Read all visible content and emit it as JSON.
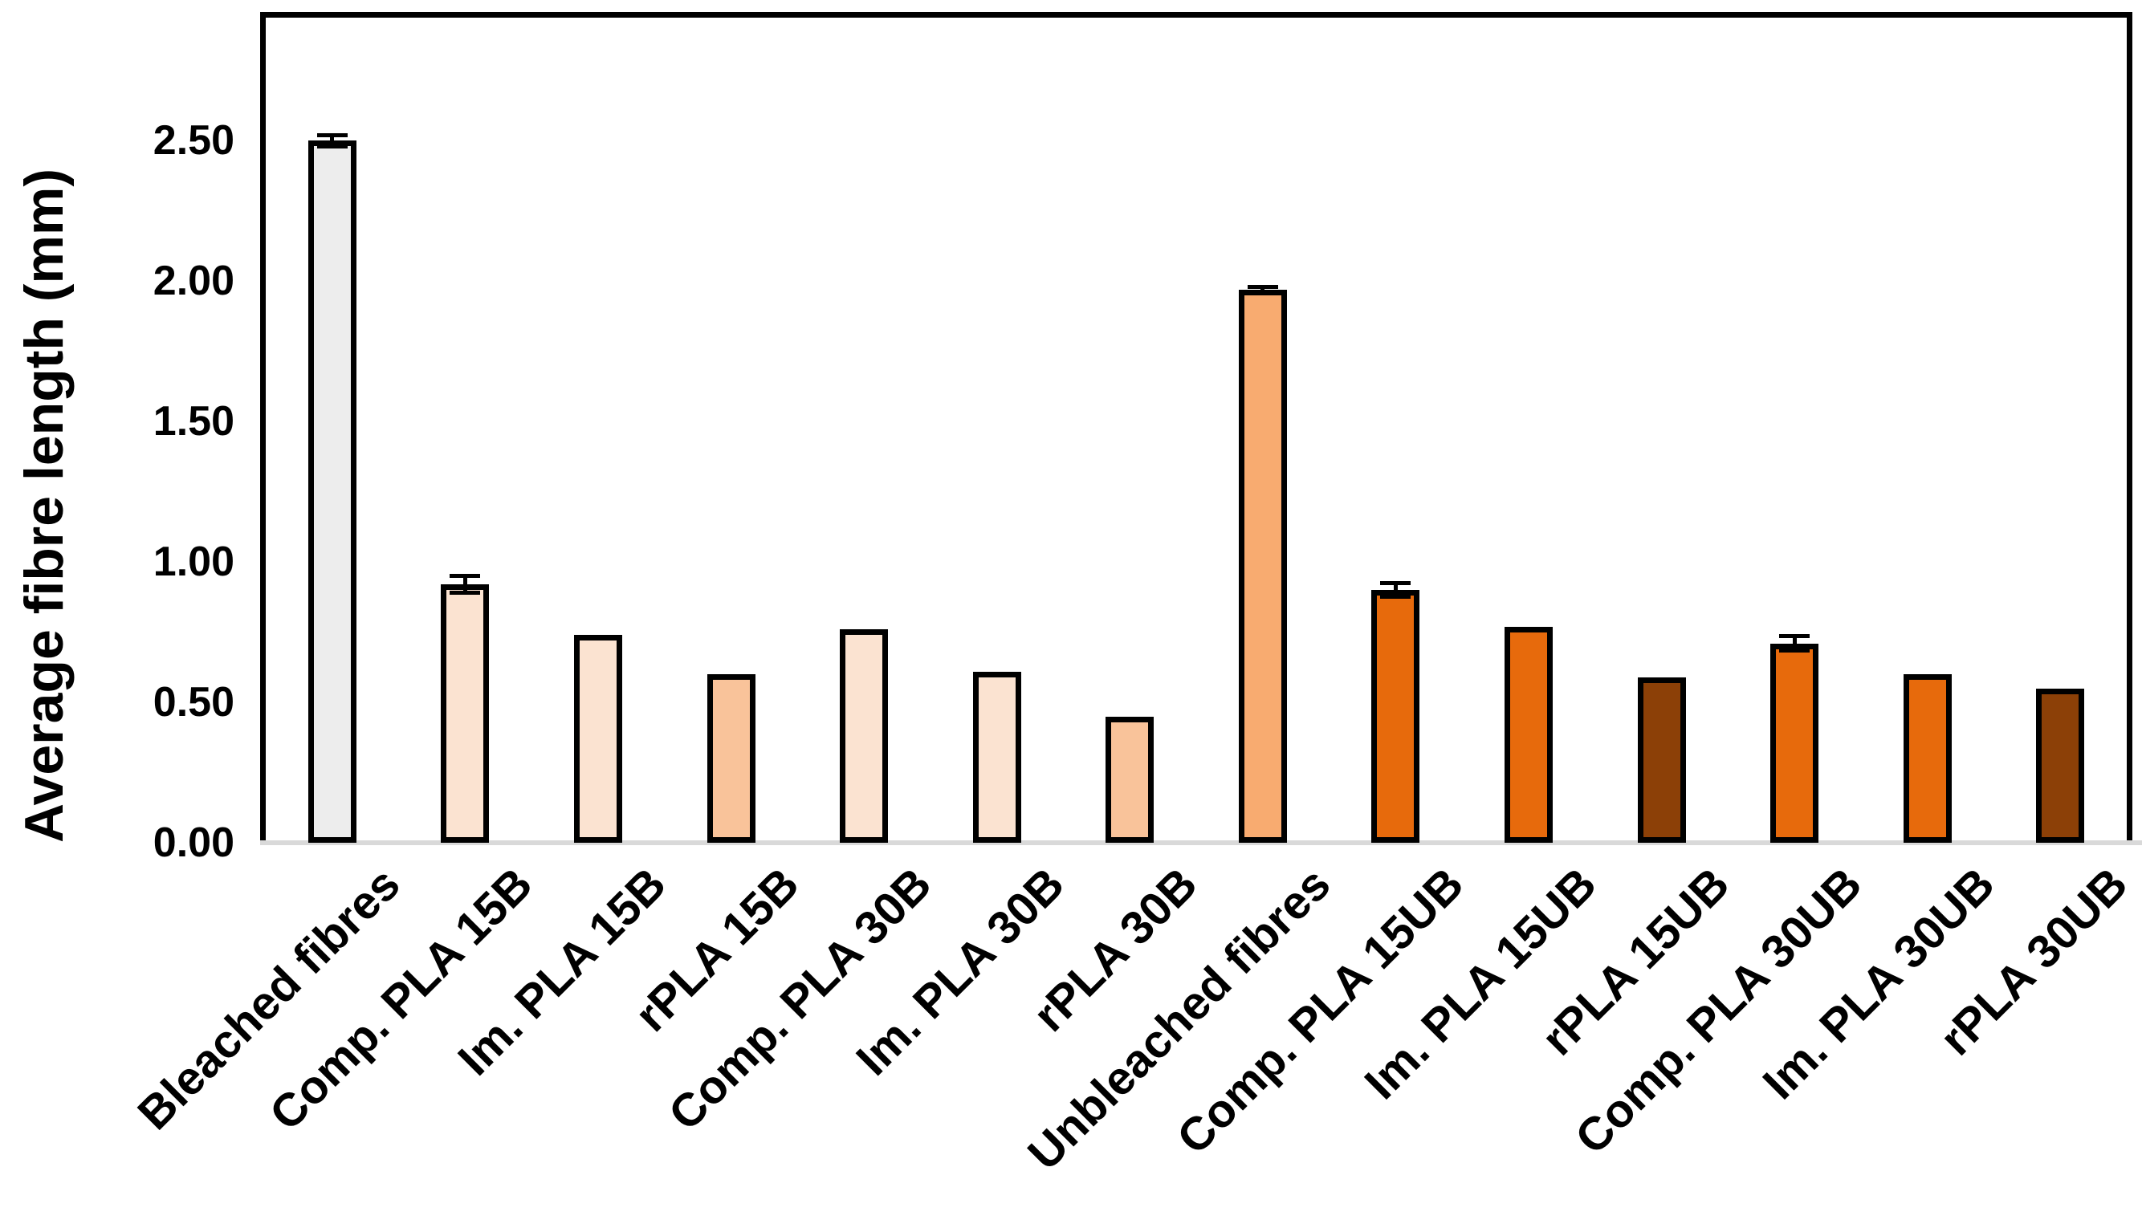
{
  "chart_data": {
    "type": "bar",
    "title": "",
    "xlabel": "",
    "ylabel": "Average fibre length (mm)",
    "ylim": [
      0,
      2.75
    ],
    "grid": false,
    "legend_position": "none",
    "yticks": {
      "labels": [
        "0.00",
        "0.50",
        "1.00",
        "1.50",
        "2.00",
        "2.50"
      ],
      "values": [
        0,
        0.5,
        1.0,
        1.5,
        2.0,
        2.5
      ]
    },
    "categories": [
      "Bleached fibres",
      "Comp. PLA 15B",
      "Im. PLA 15B",
      "rPLA 15B",
      "Comp. PLA 30B",
      "Im. PLA 30B",
      "rPLA 30B",
      "Unbleached fibres",
      "Comp. PLA 15UB",
      "Im. PLA 15UB",
      "rPLA 15UB",
      "Comp. PLA 30UB",
      "Im. PLA 30UB",
      "rPLA 30UB"
    ],
    "values": [
      2.5,
      0.92,
      0.74,
      0.6,
      0.76,
      0.61,
      0.45,
      1.97,
      0.9,
      0.77,
      0.59,
      0.71,
      0.6,
      0.55
    ],
    "errors": [
      0.02,
      0.03,
      0,
      0,
      0,
      0,
      0,
      0.01,
      0.025,
      0,
      0,
      0.025,
      0,
      0
    ],
    "bar_colors": [
      "#EDEDED",
      "#FBE3D1",
      "#FBE3D1",
      "#F9C39A",
      "#FBE3D1",
      "#FBE3D1",
      "#F9C39A",
      "#F8AB70",
      "#E76A0C",
      "#E76A0C",
      "#8C4007",
      "#E76A0C",
      "#E76A0C",
      "#8C4007"
    ],
    "colors": {
      "bar_border": "#000000",
      "frame": "#000000",
      "baseline": "#D9D9D9",
      "text": "#000000",
      "background": "#FFFFFF"
    }
  }
}
